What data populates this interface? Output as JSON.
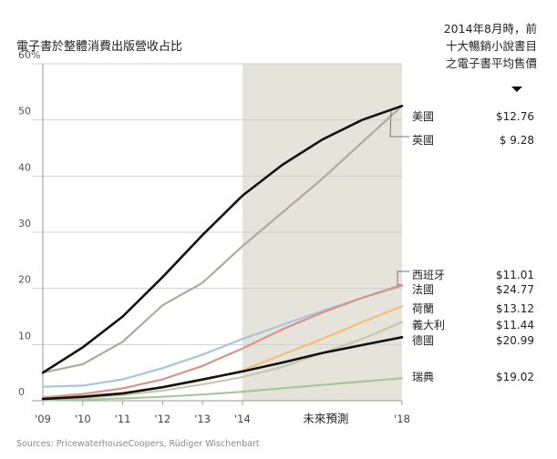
{
  "chart_data": {
    "type": "line",
    "title": "電子書於整體消費出版營收占比",
    "note_lines": [
      "2014年8月時，前",
      "十大暢銷小說書目",
      "之電子書平均售價"
    ],
    "source": "Sources: PricewaterhouseCoopers, Rüdiger Wischenbart",
    "forecast_label": "未來預測",
    "forecast_range": [
      2014,
      2018
    ],
    "xlim": [
      2009,
      2018
    ],
    "ylim": [
      0,
      60
    ],
    "y_ticks": [
      {
        "value": 0,
        "label": "0"
      },
      {
        "value": 10,
        "label": "10"
      },
      {
        "value": 20,
        "label": "20"
      },
      {
        "value": 30,
        "label": "30"
      },
      {
        "value": 40,
        "label": "40"
      },
      {
        "value": 50,
        "label": "50"
      },
      {
        "value": 60,
        "label": "60%"
      }
    ],
    "x_ticks": [
      {
        "value": 2009,
        "label": "'09"
      },
      {
        "value": 2010,
        "label": "'10"
      },
      {
        "value": 2011,
        "label": "'11"
      },
      {
        "value": 2012,
        "label": "'12"
      },
      {
        "value": 2013,
        "label": "'13"
      },
      {
        "value": 2014,
        "label": "'14"
      },
      {
        "value": 2018,
        "label": "'18"
      }
    ],
    "x": [
      2009,
      2010,
      2011,
      2012,
      2013,
      2014,
      2015,
      2016,
      2017,
      2018
    ],
    "series": [
      {
        "name": "美國",
        "price": "$12.76",
        "color": "#111111",
        "width": 2.6,
        "values": [
          5,
          9.5,
          15,
          22,
          29.5,
          36.5,
          42,
          46.5,
          50,
          52.5
        ]
      },
      {
        "name": "英國",
        "price": "$ 9.28",
        "color": "#aeab9a",
        "width": 2.2,
        "values": [
          5,
          6.5,
          10.5,
          17,
          21,
          27.5,
          33.5,
          39.5,
          46,
          52.5
        ]
      },
      {
        "name": "西班牙",
        "price": "$11.01",
        "color": "#a9c4dd",
        "width": 2.2,
        "values": [
          2.5,
          2.7,
          3.8,
          5.8,
          8.2,
          11,
          13.5,
          16,
          18.3,
          20.7
        ]
      },
      {
        "name": "法國",
        "price": "$24.77",
        "color": "#d9938b",
        "width": 2.2,
        "values": [
          0.6,
          1.2,
          2.2,
          3.8,
          6.2,
          9.3,
          12.7,
          15.7,
          18.3,
          20.5
        ]
      },
      {
        "name": "荷蘭",
        "price": "$13.12",
        "color": "#f2bf78",
        "width": 2.2,
        "values": [
          0.4,
          0.8,
          1.4,
          2.4,
          3.6,
          5.4,
          8.2,
          11,
          14,
          16.8
        ]
      },
      {
        "name": "義大利",
        "price": "$11.44",
        "color": "#c9c7b0",
        "width": 2.2,
        "values": [
          0.2,
          0.5,
          1,
          1.8,
          2.9,
          4.2,
          6,
          8.5,
          11,
          14
        ]
      },
      {
        "name": "德國",
        "price": "$20.99",
        "color": "#111111",
        "width": 2.6,
        "values": [
          0.3,
          0.7,
          1.3,
          2.4,
          3.8,
          5.2,
          6.8,
          8.5,
          9.9,
          11.3
        ]
      },
      {
        "name": "瑞典",
        "price": "$19.02",
        "color": "#a8c79b",
        "width": 2.2,
        "values": [
          0.1,
          0.2,
          0.4,
          0.7,
          1.1,
          1.6,
          2.2,
          2.8,
          3.4,
          4
        ]
      }
    ]
  }
}
